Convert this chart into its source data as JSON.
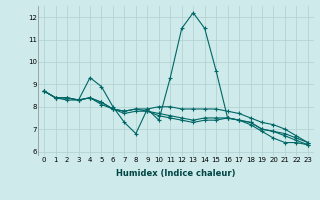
{
  "xlabel": "Humidex (Indice chaleur)",
  "ylabel": "",
  "bg_color": "#ceeaea",
  "grid_color": "#b0d0d0",
  "line_color": "#006666",
  "x": [
    0,
    1,
    2,
    3,
    4,
    5,
    6,
    7,
    8,
    9,
    10,
    11,
    12,
    13,
    14,
    15,
    16,
    17,
    18,
    19,
    20,
    21,
    22,
    23
  ],
  "line1": [
    8.7,
    8.4,
    8.4,
    8.3,
    9.3,
    8.9,
    8.0,
    7.3,
    6.8,
    7.9,
    7.4,
    9.3,
    11.5,
    12.2,
    11.5,
    9.6,
    7.5,
    7.4,
    7.2,
    6.9,
    6.6,
    6.4,
    6.4,
    6.3
  ],
  "line2": [
    8.7,
    8.4,
    8.4,
    8.3,
    8.4,
    8.2,
    7.9,
    7.8,
    7.9,
    7.8,
    7.6,
    7.5,
    7.4,
    7.3,
    7.4,
    7.4,
    7.5,
    7.4,
    7.3,
    7.0,
    6.9,
    6.8,
    6.6,
    6.4
  ],
  "line3": [
    8.7,
    8.4,
    8.4,
    8.3,
    8.4,
    8.2,
    7.9,
    7.8,
    7.9,
    7.9,
    8.0,
    8.0,
    7.9,
    7.9,
    7.9,
    7.9,
    7.8,
    7.7,
    7.5,
    7.3,
    7.2,
    7.0,
    6.7,
    6.4
  ],
  "line4": [
    8.7,
    8.4,
    8.3,
    8.3,
    8.4,
    8.1,
    7.9,
    7.7,
    7.8,
    7.8,
    7.7,
    7.6,
    7.5,
    7.4,
    7.5,
    7.5,
    7.5,
    7.4,
    7.3,
    7.0,
    6.9,
    6.7,
    6.5,
    6.3
  ],
  "ylim": [
    5.8,
    12.5
  ],
  "xlim": [
    -0.5,
    23.5
  ],
  "yticks": [
    6,
    7,
    8,
    9,
    10,
    11,
    12
  ],
  "xticks": [
    0,
    1,
    2,
    3,
    4,
    5,
    6,
    7,
    8,
    9,
    10,
    11,
    12,
    13,
    14,
    15,
    16,
    17,
    18,
    19,
    20,
    21,
    22,
    23
  ],
  "marker": "+",
  "markersize": 3,
  "linewidth": 0.8,
  "tick_fontsize": 5,
  "xlabel_fontsize": 6,
  "xlabel_color": "#004444"
}
